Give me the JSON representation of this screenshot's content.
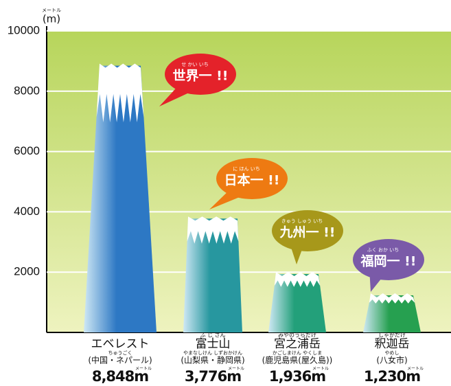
{
  "chart_data": {
    "type": "mountain",
    "y_unit_ruby": "メートル",
    "y_unit": "(m)",
    "categories": [
      "エベレスト",
      "富士山",
      "宮之浦岳",
      "釈迦岳"
    ],
    "category_ruby": [
      null,
      "ふ じ さん",
      "みやのうらだけ",
      "しゃかだけ"
    ],
    "sublabels": [
      "(中国・ネパール)",
      "(山梨県・静岡県)",
      "(鹿児島県(屋久島))",
      "(八女市)"
    ],
    "sublabel_ruby": [
      "ちゅうごく",
      "やまなしけん しずおかけん",
      "かごしまけん やくしま",
      "やめし"
    ],
    "values": [
      8848,
      3776,
      1936,
      1230
    ],
    "value_labels": [
      "8,848m",
      "3,776m",
      "1,936m",
      "1,230m"
    ],
    "value_label_ruby": [
      "メートル",
      "メートル",
      "メートル",
      "メートル"
    ],
    "colors": [
      "#2d78c4",
      "#27979f",
      "#23a07a",
      "#26a050"
    ],
    "annotations": [
      {
        "text": "世界一 !!",
        "ruby": "せ かい いち",
        "color": "#e4222a"
      },
      {
        "text": "日本一 !!",
        "ruby": "に ほん いち",
        "color": "#ee7a12"
      },
      {
        "text": "九州一 !!",
        "ruby": "きゅう しゅう いち",
        "color": "#a7981a"
      },
      {
        "text": "福岡一 !!",
        "ruby": "ふく おか いち",
        "color": "#7a5aa8"
      }
    ],
    "ylim": [
      0,
      10000
    ],
    "yticks": [
      2000,
      4000,
      6000,
      8000,
      10000
    ],
    "grid": true
  }
}
